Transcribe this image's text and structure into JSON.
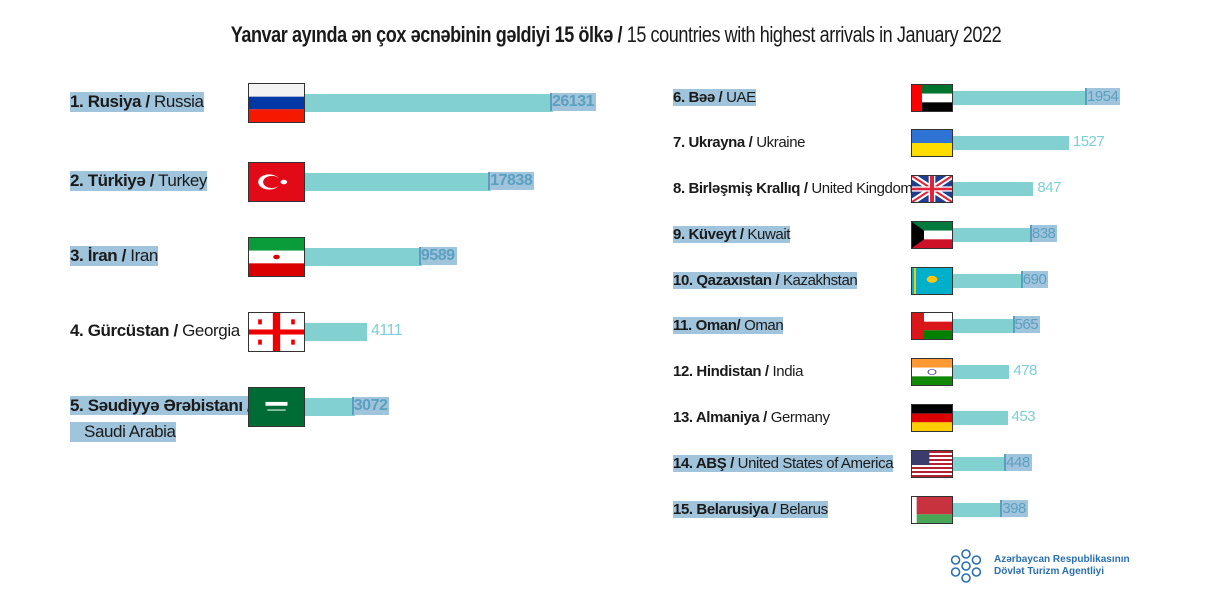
{
  "title": {
    "bold": "Yanvar ayında ən çox əcnəbinin gəldiyi 15 ölkə /",
    "regular": "15 countries with highest arrivals in January 2022"
  },
  "colors": {
    "bar": "#82d0cf",
    "highlight": "#a0c4dc"
  },
  "chart_data": {
    "type": "bar",
    "title": "Yanvar ayında ən çox əcnəbinin gəldiyi 15 ölkə / 15 countries with highest arrivals in January 2022",
    "items": [
      {
        "rank_az": "1. Rusiya /",
        "en": "Russia",
        "value": 26131,
        "flag": "ru",
        "sel": true
      },
      {
        "rank_az": "2. Türkiyə /",
        "en": "Turkey",
        "value": 17838,
        "flag": "tr",
        "sel": true
      },
      {
        "rank_az": "3. İran /",
        "en": "Iran",
        "value": 9589,
        "flag": "ir",
        "sel": true
      },
      {
        "rank_az": "4. Gürcüstan /",
        "en": "Georgia",
        "value": 4111,
        "flag": "ge",
        "sel": false
      },
      {
        "rank_az": "5. Səudiyyə Ərəbistanı /",
        "en": "Saudi Arabia",
        "value": 3072,
        "flag": "sa",
        "sel": true
      },
      {
        "rank_az": "6. Bəə /",
        "en": "UAE",
        "value": 1954,
        "flag": "ae",
        "sel": true
      },
      {
        "rank_az": "7. Ukrayna /",
        "en": "Ukraine",
        "value": 1527,
        "flag": "ua",
        "sel": false
      },
      {
        "rank_az": "8. Birləşmiş Krallıq /",
        "en": "United Kingdom",
        "value": 847,
        "flag": "gb",
        "sel": false
      },
      {
        "rank_az": "9. Küveyt /",
        "en": "Kuwait",
        "value": 838,
        "flag": "kw",
        "sel": true
      },
      {
        "rank_az": "10. Qazaxıstan /",
        "en": "Kazakhstan",
        "value": 690,
        "flag": "kz",
        "sel": true
      },
      {
        "rank_az": "11. Oman/",
        "en": "Oman",
        "value": 565,
        "flag": "om",
        "sel": true
      },
      {
        "rank_az": "12. Hindistan /",
        "en": "India",
        "value": 478,
        "flag": "in",
        "sel": false
      },
      {
        "rank_az": "13. Almaniya /",
        "en": "Germany",
        "value": 453,
        "flag": "de",
        "sel": false
      },
      {
        "rank_az": "14. ABŞ /",
        "en": "United States of America",
        "value": 448,
        "flag": "us",
        "sel": true
      },
      {
        "rank_az": "15. Belarusiya /",
        "en": "Belarus",
        "value": 398,
        "flag": "by",
        "sel": true
      }
    ]
  },
  "logo": {
    "line1": "Azərbaycan Respublikasının",
    "line2": "Dövlət Turizm Agentliyi"
  }
}
